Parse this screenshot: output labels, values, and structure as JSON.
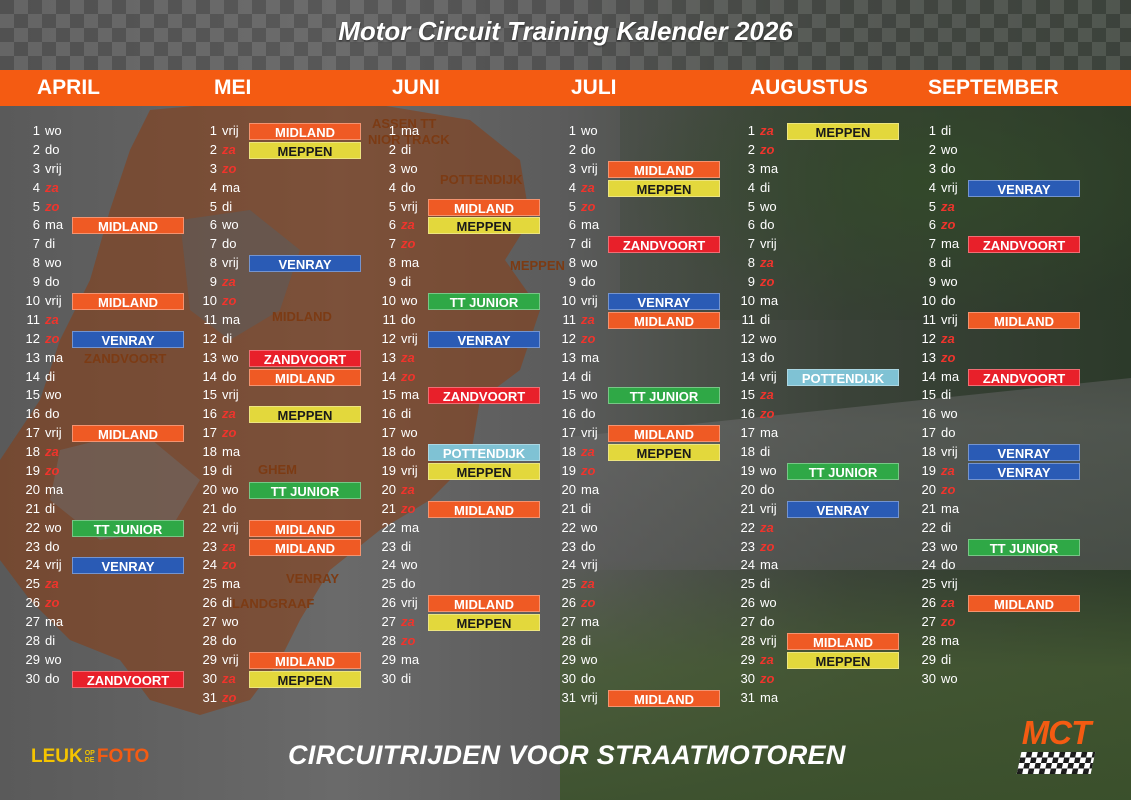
{
  "title": "Motor Circuit Training Kalender 2026",
  "colors": {
    "MIDLAND": {
      "bg": "#ef5a24",
      "fg": "#ffffff"
    },
    "MEPPEN": {
      "bg": "#e3d83c",
      "fg": "#1a1a1a"
    },
    "VENRAY": {
      "bg": "#2a5bb5",
      "fg": "#ffffff"
    },
    "ZANDVOORT": {
      "bg": "#e8202a",
      "fg": "#ffffff"
    },
    "TT JUNIOR": {
      "bg": "#2fa846",
      "fg": "#ffffff"
    },
    "POTTENDIJK": {
      "bg": "#7fc2d4",
      "fg": "#ffffff"
    }
  },
  "map_labels": [
    "ASSEN TT",
    "NIOR TRACK",
    "POTTENDIJK",
    "MEPPEN",
    "MIDLAND",
    "ZANDVOORT",
    "GHEM",
    "VENRAY",
    "LANDGRAAF"
  ],
  "months": [
    {
      "name": "APRIL",
      "days": [
        {
          "n": "1",
          "d": "wo"
        },
        {
          "n": "2",
          "d": "do"
        },
        {
          "n": "3",
          "d": "vrij"
        },
        {
          "n": "4",
          "d": "za",
          "w": true
        },
        {
          "n": "5",
          "d": "zo",
          "w": true
        },
        {
          "n": "6",
          "d": "ma",
          "e": "MIDLAND"
        },
        {
          "n": "7",
          "d": "di"
        },
        {
          "n": "8",
          "d": "wo"
        },
        {
          "n": "9",
          "d": "do"
        },
        {
          "n": "10",
          "d": "vrij",
          "e": "MIDLAND"
        },
        {
          "n": "11",
          "d": "za",
          "w": true
        },
        {
          "n": "12",
          "d": "zo",
          "w": true,
          "e": "VENRAY"
        },
        {
          "n": "13",
          "d": "ma"
        },
        {
          "n": "14",
          "d": "di"
        },
        {
          "n": "15",
          "d": "wo"
        },
        {
          "n": "16",
          "d": "do"
        },
        {
          "n": "17",
          "d": "vrij",
          "e": "MIDLAND"
        },
        {
          "n": "18",
          "d": "za",
          "w": true
        },
        {
          "n": "19",
          "d": "zo",
          "w": true
        },
        {
          "n": "20",
          "d": "ma"
        },
        {
          "n": "21",
          "d": "di"
        },
        {
          "n": "22",
          "d": "wo",
          "e": "TT JUNIOR"
        },
        {
          "n": "23",
          "d": "do"
        },
        {
          "n": "24",
          "d": "vrij",
          "e": "VENRAY"
        },
        {
          "n": "25",
          "d": "za",
          "w": true
        },
        {
          "n": "26",
          "d": "zo",
          "w": true
        },
        {
          "n": "27",
          "d": "ma"
        },
        {
          "n": "28",
          "d": "di"
        },
        {
          "n": "29",
          "d": "wo"
        },
        {
          "n": "30",
          "d": "do",
          "e": "ZANDVOORT"
        }
      ]
    },
    {
      "name": "MEI",
      "days": [
        {
          "n": "1",
          "d": "vrij",
          "e": "MIDLAND"
        },
        {
          "n": "2",
          "d": "za",
          "w": true,
          "e": "MEPPEN"
        },
        {
          "n": "3",
          "d": "zo",
          "w": true
        },
        {
          "n": "4",
          "d": "ma"
        },
        {
          "n": "5",
          "d": "di"
        },
        {
          "n": "6",
          "d": "wo"
        },
        {
          "n": "7",
          "d": "do"
        },
        {
          "n": "8",
          "d": "vrij",
          "e": "VENRAY"
        },
        {
          "n": "9",
          "d": "za",
          "w": true
        },
        {
          "n": "10",
          "d": "zo",
          "w": true
        },
        {
          "n": "11",
          "d": "ma"
        },
        {
          "n": "12",
          "d": "di"
        },
        {
          "n": "13",
          "d": "wo",
          "e": "ZANDVOORT"
        },
        {
          "n": "14",
          "d": "do",
          "e": "MIDLAND"
        },
        {
          "n": "15",
          "d": "vrij"
        },
        {
          "n": "16",
          "d": "za",
          "w": true,
          "e": "MEPPEN"
        },
        {
          "n": "17",
          "d": "zo",
          "w": true
        },
        {
          "n": "18",
          "d": "ma"
        },
        {
          "n": "19",
          "d": "di"
        },
        {
          "n": "20",
          "d": "wo",
          "e": "TT JUNIOR"
        },
        {
          "n": "21",
          "d": "do"
        },
        {
          "n": "22",
          "d": "vrij",
          "e": "MIDLAND"
        },
        {
          "n": "23",
          "d": "za",
          "w": true,
          "e": "MIDLAND"
        },
        {
          "n": "24",
          "d": "zo",
          "w": true
        },
        {
          "n": "25",
          "d": "ma"
        },
        {
          "n": "26",
          "d": "di"
        },
        {
          "n": "27",
          "d": "wo"
        },
        {
          "n": "28",
          "d": "do"
        },
        {
          "n": "29",
          "d": "vrij",
          "e": "MIDLAND"
        },
        {
          "n": "30",
          "d": "za",
          "w": true,
          "e": "MEPPEN"
        },
        {
          "n": "31",
          "d": "zo",
          "w": true
        }
      ]
    },
    {
      "name": "JUNI",
      "days": [
        {
          "n": "1",
          "d": "ma"
        },
        {
          "n": "2",
          "d": "di"
        },
        {
          "n": "3",
          "d": "wo"
        },
        {
          "n": "4",
          "d": "do"
        },
        {
          "n": "5",
          "d": "vrij",
          "e": "MIDLAND"
        },
        {
          "n": "6",
          "d": "za",
          "w": true,
          "e": "MEPPEN"
        },
        {
          "n": "7",
          "d": "zo",
          "w": true
        },
        {
          "n": "8",
          "d": "ma"
        },
        {
          "n": "9",
          "d": "di"
        },
        {
          "n": "10",
          "d": "wo",
          "e": "TT JUNIOR"
        },
        {
          "n": "11",
          "d": "do"
        },
        {
          "n": "12",
          "d": "vrij",
          "e": "VENRAY"
        },
        {
          "n": "13",
          "d": "za",
          "w": true
        },
        {
          "n": "14",
          "d": "zo",
          "w": true
        },
        {
          "n": "15",
          "d": "ma",
          "e": "ZANDVOORT"
        },
        {
          "n": "16",
          "d": "di"
        },
        {
          "n": "17",
          "d": "wo"
        },
        {
          "n": "18",
          "d": "do",
          "e": "POTTENDIJK"
        },
        {
          "n": "19",
          "d": "vrij",
          "e": "MEPPEN"
        },
        {
          "n": "20",
          "d": "za",
          "w": true
        },
        {
          "n": "21",
          "d": "zo",
          "w": true,
          "e": "MIDLAND"
        },
        {
          "n": "22",
          "d": "ma"
        },
        {
          "n": "23",
          "d": "di"
        },
        {
          "n": "24",
          "d": "wo"
        },
        {
          "n": "25",
          "d": "do"
        },
        {
          "n": "26",
          "d": "vrij",
          "e": "MIDLAND"
        },
        {
          "n": "27",
          "d": "za",
          "w": true,
          "e": "MEPPEN"
        },
        {
          "n": "28",
          "d": "zo",
          "w": true
        },
        {
          "n": "29",
          "d": "ma"
        },
        {
          "n": "30",
          "d": "di"
        }
      ]
    },
    {
      "name": "JULI",
      "days": [
        {
          "n": "1",
          "d": "wo"
        },
        {
          "n": "2",
          "d": "do"
        },
        {
          "n": "3",
          "d": "vrij",
          "e": "MIDLAND"
        },
        {
          "n": "4",
          "d": "za",
          "w": true,
          "e": "MEPPEN"
        },
        {
          "n": "5",
          "d": "zo",
          "w": true
        },
        {
          "n": "6",
          "d": "ma"
        },
        {
          "n": "7",
          "d": "di",
          "e": "ZANDVOORT"
        },
        {
          "n": "8",
          "d": "wo"
        },
        {
          "n": "9",
          "d": "do"
        },
        {
          "n": "10",
          "d": "vrij",
          "e": "VENRAY"
        },
        {
          "n": "11",
          "d": "za",
          "w": true,
          "e": "MIDLAND"
        },
        {
          "n": "12",
          "d": "zo",
          "w": true
        },
        {
          "n": "13",
          "d": "ma"
        },
        {
          "n": "14",
          "d": "di"
        },
        {
          "n": "15",
          "d": "wo",
          "e": "TT JUNIOR"
        },
        {
          "n": "16",
          "d": "do"
        },
        {
          "n": "17",
          "d": "vrij",
          "e": "MIDLAND"
        },
        {
          "n": "18",
          "d": "za",
          "w": true,
          "e": "MEPPEN"
        },
        {
          "n": "19",
          "d": "zo",
          "w": true
        },
        {
          "n": "20",
          "d": "ma"
        },
        {
          "n": "21",
          "d": "di"
        },
        {
          "n": "22",
          "d": "wo"
        },
        {
          "n": "23",
          "d": "do"
        },
        {
          "n": "24",
          "d": "vrij"
        },
        {
          "n": "25",
          "d": "za",
          "w": true
        },
        {
          "n": "26",
          "d": "zo",
          "w": true
        },
        {
          "n": "27",
          "d": "ma"
        },
        {
          "n": "28",
          "d": "di"
        },
        {
          "n": "29",
          "d": "wo"
        },
        {
          "n": "30",
          "d": "do"
        },
        {
          "n": "31",
          "d": "vrij",
          "e": "MIDLAND"
        }
      ]
    },
    {
      "name": "AUGUSTUS",
      "days": [
        {
          "n": "1",
          "d": "za",
          "w": true,
          "e": "MEPPEN"
        },
        {
          "n": "2",
          "d": "zo",
          "w": true
        },
        {
          "n": "3",
          "d": "ma"
        },
        {
          "n": "4",
          "d": "di"
        },
        {
          "n": "5",
          "d": "wo"
        },
        {
          "n": "6",
          "d": "do"
        },
        {
          "n": "7",
          "d": "vrij"
        },
        {
          "n": "8",
          "d": "za",
          "w": true
        },
        {
          "n": "9",
          "d": "zo",
          "w": true
        },
        {
          "n": "10",
          "d": "ma"
        },
        {
          "n": "11",
          "d": "di"
        },
        {
          "n": "12",
          "d": "wo"
        },
        {
          "n": "13",
          "d": "do"
        },
        {
          "n": "14",
          "d": "vrij",
          "e": "POTTENDIJK"
        },
        {
          "n": "15",
          "d": "za",
          "w": true
        },
        {
          "n": "16",
          "d": "zo",
          "w": true
        },
        {
          "n": "17",
          "d": "ma"
        },
        {
          "n": "18",
          "d": "di"
        },
        {
          "n": "19",
          "d": "wo",
          "e": "TT JUNIOR"
        },
        {
          "n": "20",
          "d": "do"
        },
        {
          "n": "21",
          "d": "vrij",
          "e": "VENRAY"
        },
        {
          "n": "22",
          "d": "za",
          "w": true
        },
        {
          "n": "23",
          "d": "zo",
          "w": true
        },
        {
          "n": "24",
          "d": "ma"
        },
        {
          "n": "25",
          "d": "di"
        },
        {
          "n": "26",
          "d": "wo"
        },
        {
          "n": "27",
          "d": "do"
        },
        {
          "n": "28",
          "d": "vrij",
          "e": "MIDLAND"
        },
        {
          "n": "29",
          "d": "za",
          "w": true,
          "e": "MEPPEN"
        },
        {
          "n": "30",
          "d": "zo",
          "w": true
        },
        {
          "n": "31",
          "d": "ma"
        }
      ]
    },
    {
      "name": "SEPTEMBER",
      "days": [
        {
          "n": "1",
          "d": "di"
        },
        {
          "n": "2",
          "d": "wo"
        },
        {
          "n": "3",
          "d": "do"
        },
        {
          "n": "4",
          "d": "vrij",
          "e": "VENRAY"
        },
        {
          "n": "5",
          "d": "za",
          "w": true
        },
        {
          "n": "6",
          "d": "zo",
          "w": true
        },
        {
          "n": "7",
          "d": "ma",
          "e": "ZANDVOORT"
        },
        {
          "n": "8",
          "d": "di"
        },
        {
          "n": "9",
          "d": "wo"
        },
        {
          "n": "10",
          "d": "do"
        },
        {
          "n": "11",
          "d": "vrij",
          "e": "MIDLAND"
        },
        {
          "n": "12",
          "d": "za",
          "w": true
        },
        {
          "n": "13",
          "d": "zo",
          "w": true
        },
        {
          "n": "14",
          "d": "ma",
          "e": "ZANDVOORT"
        },
        {
          "n": "15",
          "d": "di"
        },
        {
          "n": "16",
          "d": "wo"
        },
        {
          "n": "17",
          "d": "do"
        },
        {
          "n": "18",
          "d": "vrij",
          "e": "VENRAY"
        },
        {
          "n": "19",
          "d": "za",
          "w": true,
          "e": "VENRAY"
        },
        {
          "n": "20",
          "d": "zo",
          "w": true
        },
        {
          "n": "21",
          "d": "ma"
        },
        {
          "n": "22",
          "d": "di"
        },
        {
          "n": "23",
          "d": "wo",
          "e": "TT JUNIOR"
        },
        {
          "n": "24",
          "d": "do"
        },
        {
          "n": "25",
          "d": "vrij"
        },
        {
          "n": "26",
          "d": "za",
          "w": true,
          "e": "MIDLAND"
        },
        {
          "n": "27",
          "d": "zo",
          "w": true
        },
        {
          "n": "28",
          "d": "ma"
        },
        {
          "n": "29",
          "d": "di"
        },
        {
          "n": "30",
          "d": "wo"
        }
      ]
    }
  ],
  "footer": {
    "logo_left_a": "LEUK",
    "logo_left_op": "OP",
    "logo_left_de": "DE",
    "logo_left_foto": "FOTO",
    "slogan": "CIRCUITRIJDEN VOOR STRAATMOTOREN",
    "logo_right": "MCT"
  }
}
